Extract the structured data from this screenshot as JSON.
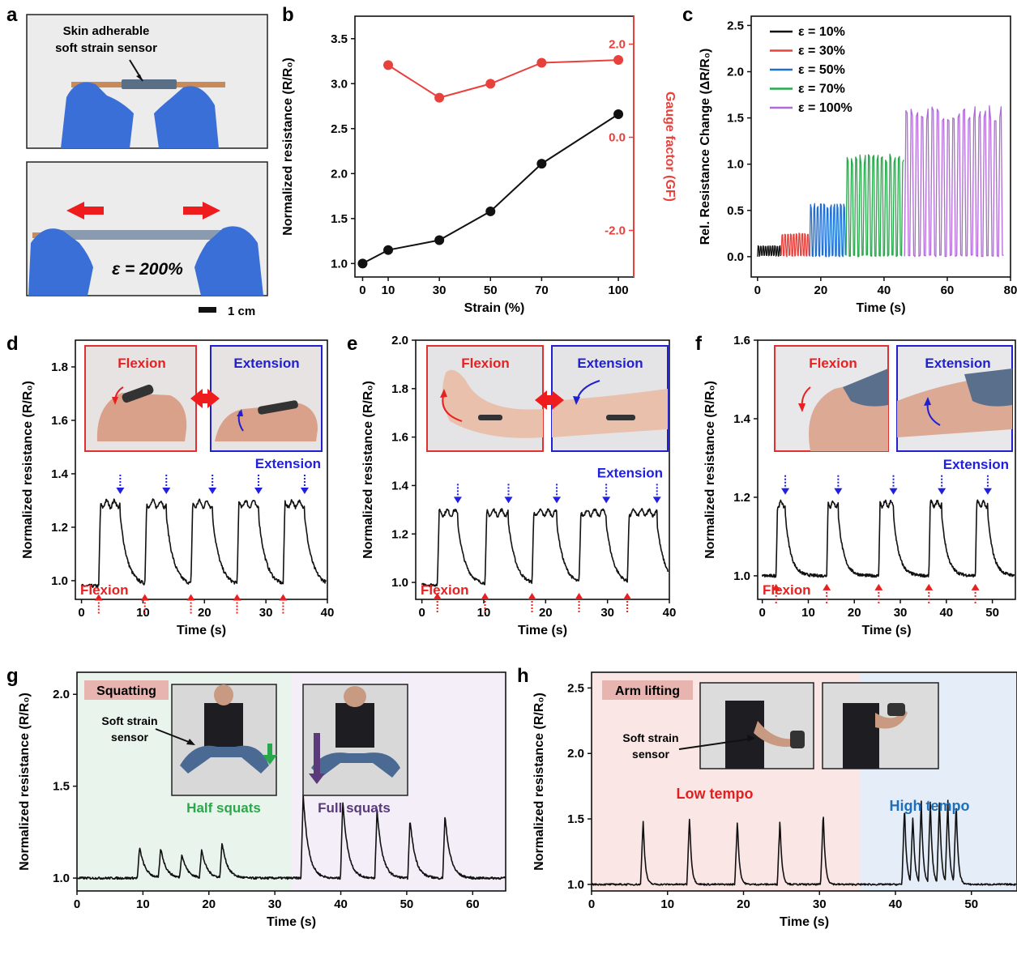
{
  "panel_letters": {
    "a": "a",
    "b": "b",
    "c": "c",
    "d": "d",
    "e": "e",
    "f": "f",
    "g": "g",
    "h": "h"
  },
  "panel_a": {
    "callout": [
      "Skin adherable",
      "soft strain sensor"
    ],
    "strain_label": "ε = 200%",
    "scale_bar_label": "1 cm"
  },
  "photo_labels": {
    "flexion": "Flexion",
    "extension": "Extension",
    "squatting": "Squatting",
    "soft_strain_sensor": [
      "Soft strain",
      "sensor"
    ],
    "half_squats": "Half squats",
    "full_squats": "Full squats",
    "arm_lifting": "Arm lifting",
    "low_tempo": "Low tempo",
    "high_tempo": "High tempo"
  },
  "colors": {
    "black": "#111111",
    "red": "#e8413c",
    "blue": "#1f6fd1",
    "green": "#27a84a",
    "purple": "#b06ad8",
    "marker_blue": "#2020e0",
    "marker_red": "#e82020",
    "bg_green": "#e9f4ec",
    "bg_purple": "#f3eef8",
    "bg_red": "#fbe6e6",
    "bg_blue": "#e5eef8",
    "tag_bg": "#e8b4b0",
    "half_squats_text": "#2aa84a",
    "full_squats_text": "#5a3a7a",
    "low_tempo_text": "#e02020",
    "high_tempo_text": "#1f6fb8"
  },
  "chart_data": [
    {
      "panel": "b",
      "type": "line",
      "xlabel": "Strain (%)",
      "ylabel": "Normalized resistance (R/R₀)",
      "y2label": "Gauge factor (GF)",
      "xticks": [
        0,
        10,
        30,
        50,
        70,
        100
      ],
      "xlim": [
        -3,
        106
      ],
      "ylim": [
        0.85,
        3.75
      ],
      "yticks": [
        1.0,
        1.5,
        2.0,
        2.5,
        3.0,
        3.5
      ],
      "y2lim": [
        -3.0,
        2.6
      ],
      "y2ticks": [
        -2.0,
        0.0,
        2.0
      ],
      "series": [
        {
          "axis": "left",
          "x": [
            0,
            10,
            30,
            50,
            70,
            100
          ],
          "values": [
            1.0,
            1.15,
            1.26,
            1.58,
            2.11,
            2.66
          ]
        },
        {
          "axis": "right",
          "x": [
            10,
            30,
            50,
            70,
            100
          ],
          "values": [
            1.55,
            0.85,
            1.15,
            1.6,
            1.66
          ]
        }
      ]
    },
    {
      "panel": "c",
      "type": "line",
      "xlabel": "Time  (s)",
      "ylabel": "Rel. Resistance  Change (ΔR/R₀)",
      "xlim": [
        -2,
        80
      ],
      "xticks": [
        0,
        20,
        40,
        60,
        80
      ],
      "ylim": [
        -0.22,
        2.6
      ],
      "yticks": [
        0.0,
        0.5,
        1.0,
        1.5,
        2.0,
        2.5
      ],
      "legend_position": "top-left",
      "series": [
        {
          "name": "ε = 10%",
          "t_start": 0,
          "t_end": 7.5,
          "period": 0.75,
          "amp": 0.12
        },
        {
          "name": "ε = 30%",
          "t_start": 7.5,
          "t_end": 16.5,
          "period": 0.9,
          "amp": 0.26
        },
        {
          "name": "ε = 50%",
          "t_start": 16.5,
          "t_end": 28,
          "period": 1.05,
          "amp": 0.58
        },
        {
          "name": "ε = 70%",
          "t_start": 28,
          "t_end": 46.5,
          "period": 1.35,
          "amp": 1.12
        },
        {
          "name": "ε = 100%",
          "t_start": 46.5,
          "t_end": 78,
          "period": 1.65,
          "amp": 1.65
        }
      ]
    },
    {
      "panel": "d",
      "type": "line",
      "xlabel": "Time  (s)",
      "ylabel": "Normalized  resistance  (R/R₀)",
      "xlim": [
        -1,
        40
      ],
      "xticks": [
        0,
        10,
        20,
        30,
        40
      ],
      "ylim": [
        0.93,
        1.9
      ],
      "yticks": [
        1.0,
        1.2,
        1.4,
        1.6,
        1.8
      ],
      "baseline": 0.98,
      "peak": 1.3,
      "flexion_times": [
        2.8,
        10.3,
        17.8,
        25.3,
        32.8
      ],
      "extension_times": [
        6.3,
        13.8,
        21.3,
        28.8,
        36.3
      ]
    },
    {
      "panel": "e",
      "type": "line",
      "xlabel": "Time  (s)",
      "ylabel": "Normalized  resistance  (R/R₀)",
      "xlim": [
        -1,
        40
      ],
      "xticks": [
        0,
        10,
        20,
        30,
        40
      ],
      "ylim": [
        0.93,
        2.0
      ],
      "yticks": [
        1.0,
        1.2,
        1.4,
        1.6,
        1.8,
        2.0
      ],
      "baseline": 0.99,
      "peak": 1.3,
      "flexion_times": [
        2.5,
        10.2,
        17.8,
        25.4,
        33.2
      ],
      "extension_times": [
        5.8,
        14.0,
        21.8,
        29.8,
        38.0
      ]
    },
    {
      "panel": "f",
      "type": "line",
      "xlabel": "Time  (s)",
      "ylabel": "Normalized  resistance  (R/R₀)",
      "xlim": [
        -1,
        55
      ],
      "xticks": [
        0,
        10,
        20,
        30,
        40,
        50
      ],
      "ylim": [
        0.94,
        1.6
      ],
      "yticks": [
        1.0,
        1.2,
        1.4,
        1.6
      ],
      "baseline": 1.0,
      "peak": 1.19,
      "flexion_times": [
        3.0,
        14.0,
        25.3,
        36.2,
        46.3
      ],
      "extension_times": [
        5.0,
        16.5,
        28.5,
        39.0,
        49.0
      ]
    },
    {
      "panel": "g",
      "type": "line",
      "xlabel": "Time  (s)",
      "ylabel": "Normalized  resistance  (R/R₀)",
      "xlim": [
        0,
        65
      ],
      "xticks": [
        0,
        10,
        20,
        30,
        40,
        50,
        60
      ],
      "ylim": [
        0.93,
        2.12
      ],
      "yticks": [
        1.0,
        1.5,
        2.0
      ],
      "phase_split": 32.5,
      "baseline": 1.0,
      "peaks": [
        [
          9.5,
          1.17
        ],
        [
          12.7,
          1.16
        ],
        [
          15.9,
          1.13
        ],
        [
          18.9,
          1.15
        ],
        [
          22.0,
          1.19
        ],
        [
          34.3,
          1.45
        ],
        [
          40.3,
          1.42
        ],
        [
          45.5,
          1.37
        ],
        [
          50.5,
          1.32
        ],
        [
          55.8,
          1.34
        ]
      ]
    },
    {
      "panel": "h",
      "type": "line",
      "xlabel": "Time  (s)",
      "ylabel": "Normalized  resistance  (R/R₀)",
      "xlim": [
        0,
        56
      ],
      "xticks": [
        0,
        10,
        20,
        30,
        40,
        50
      ],
      "ylim": [
        0.95,
        2.62
      ],
      "yticks": [
        1.0,
        1.5,
        2.0,
        2.5
      ],
      "phase_split": 35.3,
      "baseline": 1.0,
      "peaks": [
        [
          6.8,
          1.5
        ],
        [
          12.9,
          1.53
        ],
        [
          19.2,
          1.5
        ],
        [
          24.8,
          1.5
        ],
        [
          30.5,
          1.56
        ],
        [
          41.2,
          1.61
        ],
        [
          42.3,
          1.53
        ],
        [
          43.4,
          1.63
        ],
        [
          44.6,
          1.64
        ],
        [
          45.8,
          1.65
        ],
        [
          46.9,
          1.63
        ],
        [
          48.0,
          1.62
        ]
      ]
    }
  ]
}
